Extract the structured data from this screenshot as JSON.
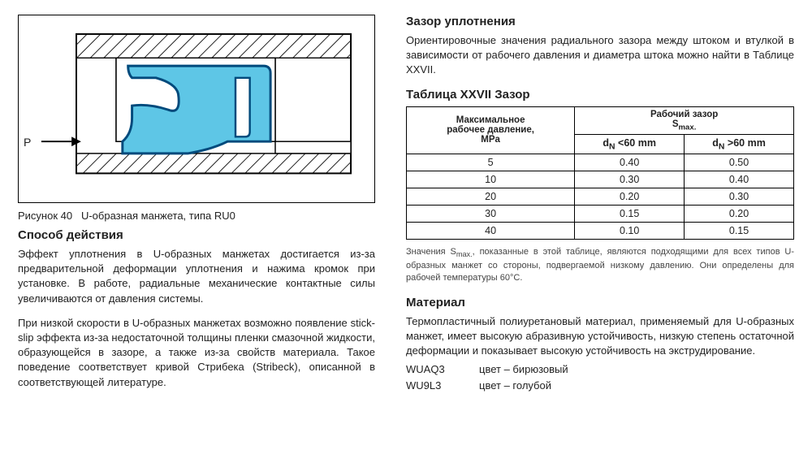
{
  "figure": {
    "caption_prefix": "Рисунок 40",
    "caption_text": "U-образная манжета, типа RU0",
    "p_label": "P",
    "colors": {
      "seal_fill": "#5ec6e6",
      "seal_stroke": "#004a7c",
      "hatch": "#1c1c1c",
      "frame": "#000000",
      "arrow": "#000000",
      "bg": "#ffffff"
    }
  },
  "left": {
    "h_action": "Способ действия",
    "p1": "Эффект уплотнения в U-образных манжетах достигается из-за предварительной деформации уплотнения и нажима кромок при установке. В работе, радиальные механические контактные силы увеличиваются от давления системы.",
    "p2": "При низкой скорости в U-образных манжетах возможно появление stick-slip эффекта из-за недостаточной толщины пленки смазочной жидкости, образующейся в зазоре, а также из-за свойств материала. Такое поведение соответствует кривой Стрибека (Stribeck), описанной в соответствующей литературе."
  },
  "right": {
    "h_gap": "Зазор уплотнения",
    "p_gap": "Ориентировочные значения радиального зазора между штоком и втулкой в зависимости от рабочего давления и диаметра штока можно найти в Таблице XXVII.",
    "table_title": "Таблица XXVII  Зазор",
    "col1_l1": "Максимальное",
    "col1_l2": "рабочее давление,",
    "col1_l3": "MPa",
    "col23_top_l1": "Рабочий зазор",
    "col23_top_l2_html": "S<sub>max.</sub>",
    "col2_sub_html": "d<sub>N</sub> <60 mm",
    "col3_sub_html": "d<sub>N</sub> >60 mm",
    "rows": [
      {
        "p": "5",
        "a": "0.40",
        "b": "0.50"
      },
      {
        "p": "10",
        "a": "0.30",
        "b": "0.40"
      },
      {
        "p": "20",
        "a": "0.20",
        "b": "0.30"
      },
      {
        "p": "30",
        "a": "0.15",
        "b": "0.20"
      },
      {
        "p": "40",
        "a": "0.10",
        "b": "0.15"
      }
    ],
    "table_note_html": "Значения S<sub>max.</sub>, показанные в этой таблице, являются подходящими для всех типов U-образных манжет со стороны, подвергаемой низкому давлению. Они определены для рабочей температуры 60°C.",
    "h_material": "Материал",
    "p_material": "Термопластичный полиуретановый материал, применяемый для U-образных манжет, имеет высокую абразивную устойчивость, низкую степень остаточной деформации и показывает высокую устойчивость на экструдирование.",
    "materials": [
      {
        "code": "WUAQ3",
        "color": "цвет – бирюзовый"
      },
      {
        "code": "WU9L3",
        "color": "цвет – голубой"
      }
    ]
  }
}
